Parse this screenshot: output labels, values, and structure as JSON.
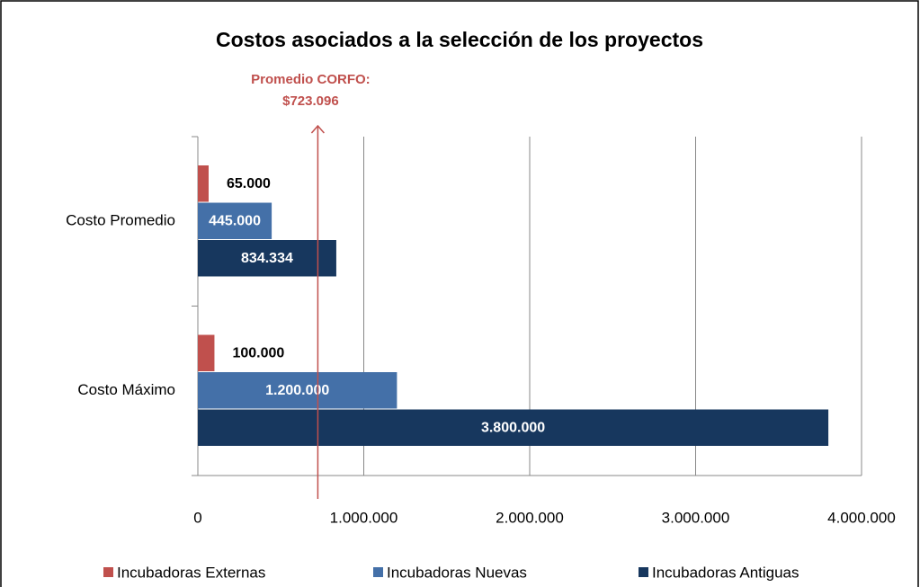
{
  "chart_data": {
    "type": "bar",
    "orientation": "horizontal",
    "title": "Costos asociados a la selección de los proyectos",
    "categories": [
      "Costo Promedio",
      "Costo Máximo"
    ],
    "series": [
      {
        "name": "Incubadoras Externas",
        "color": "#c0504d",
        "values": [
          65000,
          100000
        ],
        "value_labels": [
          "65.000",
          "100.000"
        ]
      },
      {
        "name": "Incubadoras Nuevas",
        "color": "#4470a8",
        "values": [
          445000,
          1200000
        ],
        "value_labels": [
          "445.000",
          "1.200.000"
        ]
      },
      {
        "name": "Incubadoras Antiguas",
        "color": "#17375e",
        "values": [
          834334,
          3800000
        ],
        "value_labels": [
          "834.334",
          "3.800.000"
        ]
      }
    ],
    "xlim": [
      0,
      4000000
    ],
    "xticks": [
      0,
      {
        "value": 1000000,
        "label": "1.000.000"
      },
      {
        "value": 2000000,
        "label": "2.000.000"
      },
      {
        "value": 3000000,
        "label": "3.000.000"
      },
      {
        "value": 4000000,
        "label": "4.000.000"
      }
    ],
    "grid": true,
    "legend": "bottom",
    "annotation": {
      "text": [
        "Promedio CORFO:",
        "$723.096"
      ],
      "value": 723096,
      "color": "#c0504d"
    }
  }
}
